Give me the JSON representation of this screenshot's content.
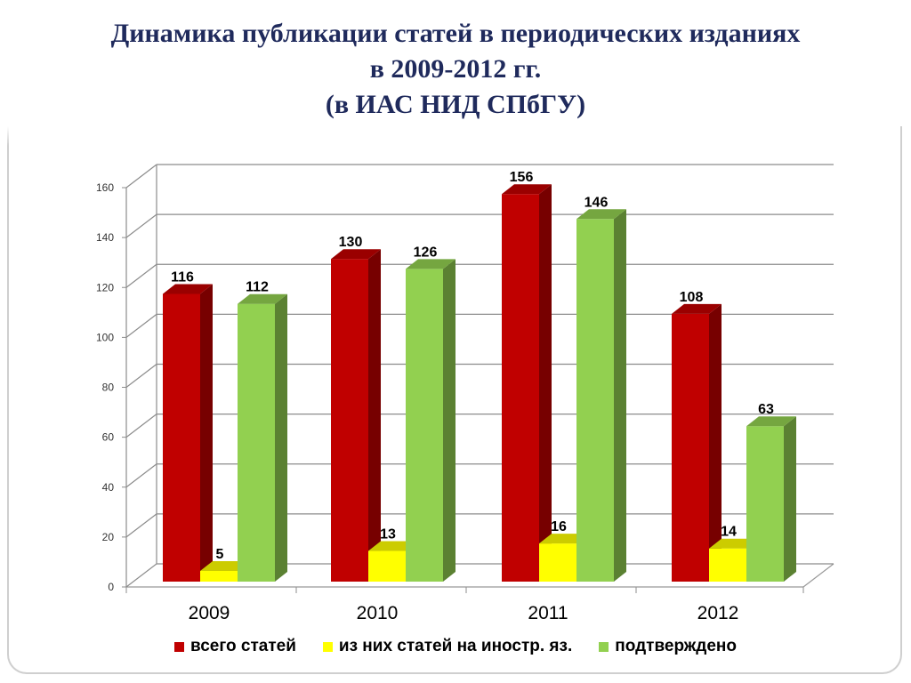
{
  "title": {
    "line1": "Динамика публикации статей в периодических изданиях",
    "line2": "в 2009-2012 гг.",
    "line3": "(в ИАС НИД СПбГУ)"
  },
  "chart_data": {
    "type": "bar",
    "categories": [
      "2009",
      "2010",
      "2011",
      "2012"
    ],
    "series": [
      {
        "name": "всего статей",
        "values": [
          116,
          130,
          156,
          108
        ],
        "color": "#c00000"
      },
      {
        "name": "из них статей на иностр. яз.",
        "values": [
          5,
          13,
          16,
          14
        ],
        "color": "#ffff00"
      },
      {
        "name": "подтверждено",
        "values": [
          112,
          126,
          146,
          63
        ],
        "color": "#92d050"
      }
    ],
    "ylim": [
      0,
      160
    ],
    "yticks": [
      0,
      20,
      40,
      60,
      80,
      100,
      120,
      140,
      160
    ],
    "grid": true,
    "legend_position": "bottom",
    "style": "3d-column"
  }
}
